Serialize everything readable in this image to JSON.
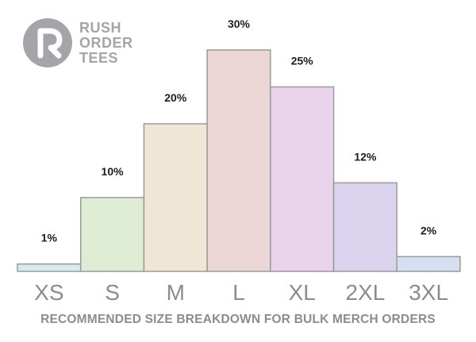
{
  "brand": {
    "logo_lines": [
      "RUSH",
      "ORDER",
      "TEES"
    ],
    "logo_color": "#a3a5a8"
  },
  "caption": "RECOMMENDED SIZE BREAKDOWN FOR BULK MERCH ORDERS",
  "chart_data": {
    "type": "bar",
    "categories": [
      "XS",
      "S",
      "M",
      "L",
      "XL",
      "2XL",
      "3XL"
    ],
    "values": [
      1,
      10,
      20,
      30,
      25,
      12,
      2
    ],
    "value_labels": [
      "1%",
      "10%",
      "20%",
      "30%",
      "25%",
      "12%",
      "2%"
    ],
    "colors": [
      "#d6ebef",
      "#deecd3",
      "#efe6d6",
      "#ecd5d5",
      "#e9d4ec",
      "#dcd4ee",
      "#d6dff0"
    ],
    "title": "",
    "xlabel": "",
    "ylabel": "",
    "ylim": [
      0,
      30
    ],
    "grid": false,
    "legend": "none"
  }
}
